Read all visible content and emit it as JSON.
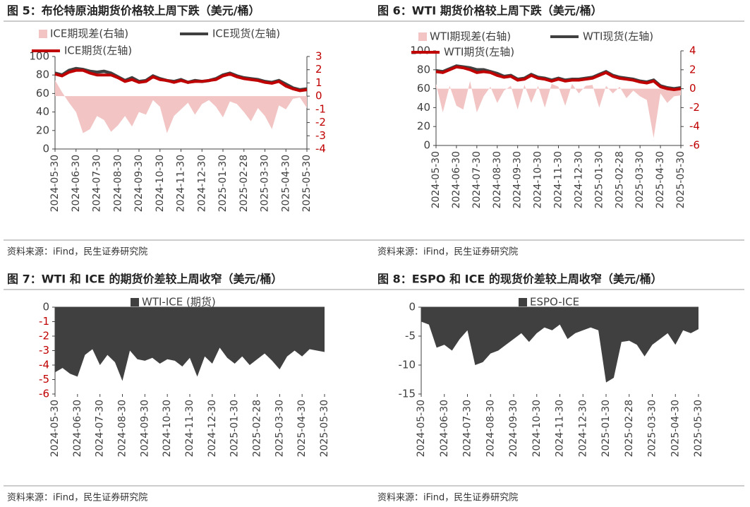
{
  "chart_data": [
    {
      "type": "line",
      "title": "图 5：布伦特原油期货价格较上周下跌（美元/桶）",
      "source": "资料来源：iFind，民生证券研究院",
      "categories": [
        "2024-05-30",
        null,
        null,
        "2024-06-30",
        null,
        null,
        "2024-07-30",
        null,
        null,
        "2024-08-30",
        null,
        null,
        "2024-09-30",
        null,
        null,
        "2024-10-30",
        null,
        null,
        "2024-11-30",
        null,
        null,
        "2024-12-30",
        null,
        null,
        "2025-01-30",
        null,
        null,
        "2025-02-28",
        null,
        null,
        "2025-03-30",
        null,
        null,
        "2025-04-30",
        null,
        null,
        "2025-05-30"
      ],
      "ylim": [
        0,
        100
      ],
      "yticks": [
        0,
        20,
        40,
        60,
        80,
        100
      ],
      "y2lim": [
        -4,
        3
      ],
      "y2ticks": [
        -4,
        -3,
        -2,
        -1,
        0,
        1,
        2,
        3
      ],
      "y2tick_color": "#c00000",
      "series": [
        {
          "name": "ICE期现差(右轴)",
          "type": "area",
          "axis": "y2",
          "color": "#f2c4c4",
          "values": [
            1.2,
            0.3,
            -0.5,
            -1.2,
            -2.8,
            -2.5,
            -1.5,
            -1.8,
            -2.7,
            -2.2,
            -1.5,
            -2.3,
            -1.2,
            -1.4,
            -0.3,
            -0.8,
            -2.8,
            -1.5,
            -1.0,
            -0.5,
            -1.4,
            -0.6,
            -0.3,
            -0.8,
            -1.6,
            -0.4,
            -0.6,
            -1.2,
            -1.9,
            -0.9,
            -1.5,
            -2.5,
            -0.7,
            -1.0,
            -0.2,
            -0.1,
            -0.9
          ]
        },
        {
          "name": "ICE现货(左轴)",
          "type": "line",
          "color": "#404040",
          "values": [
            82,
            80,
            85,
            87,
            86,
            84,
            83,
            84,
            82,
            78,
            74,
            77,
            73,
            74,
            79,
            76,
            74,
            73,
            75,
            72,
            74,
            73,
            74,
            76,
            80,
            82,
            79,
            77,
            76,
            75,
            73,
            72,
            74,
            70,
            66,
            64,
            65
          ]
        },
        {
          "name": "ICE期货(左轴)",
          "type": "line",
          "color": "#c00000",
          "values": [
            81,
            79,
            83,
            85,
            85,
            82,
            80,
            80,
            80,
            77,
            73,
            75,
            72,
            73,
            78,
            75,
            74,
            72,
            74,
            72,
            73,
            73,
            74,
            75,
            79,
            81,
            78,
            76,
            75,
            74,
            72,
            71,
            73,
            68,
            65,
            63,
            64
          ]
        }
      ]
    },
    {
      "type": "line",
      "title": "图 6：WTI 期货价格较上周下跌（美元/桶）",
      "source": "资料来源：iFind，民生证券研究院",
      "categories": [
        "2024-05-30",
        null,
        null,
        "2024-06-30",
        null,
        null,
        "2024-07-30",
        null,
        null,
        "2024-08-30",
        null,
        null,
        "2024-09-30",
        null,
        null,
        "2024-10-30",
        null,
        null,
        "2024-11-30",
        null,
        null,
        "2024-12-30",
        null,
        null,
        "2025-01-30",
        null,
        null,
        "2025-02-28",
        null,
        null,
        "2025-03-30",
        null,
        null,
        "2025-04-30",
        null,
        null,
        "2025-05-30"
      ],
      "ylim": [
        0,
        100
      ],
      "yticks": [
        0,
        20,
        40,
        60,
        80,
        100
      ],
      "y2lim": [
        -6,
        4
      ],
      "y2ticks": [
        -6,
        -4,
        -2,
        0,
        2,
        4
      ],
      "y2tick_color": "#c00000",
      "series": [
        {
          "name": "WTI期现差(右轴)",
          "type": "area",
          "axis": "y2",
          "color": "#f2c4c4",
          "values": [
            0.5,
            -2.5,
            0.3,
            -1.8,
            -2.2,
            0.8,
            -2.5,
            -0.8,
            0.2,
            -1.5,
            -0.2,
            0.3,
            -2.2,
            0.4,
            -1.5,
            0.3,
            -2.0,
            0.5,
            0.2,
            -1.8,
            0.5,
            -0.5,
            0.3,
            0.4,
            -2.0,
            0.3,
            -0.5,
            0.2,
            -1.0,
            -0.2,
            -0.8,
            -1.2,
            -5.2,
            -0.5,
            -1.5,
            -0.8,
            -0.7
          ]
        },
        {
          "name": "WTI现货(左轴)",
          "type": "line",
          "color": "#404040",
          "values": [
            79,
            78,
            81,
            84,
            83,
            82,
            80,
            80,
            78,
            76,
            73,
            74,
            70,
            71,
            75,
            72,
            71,
            69,
            71,
            69,
            70,
            70,
            71,
            72,
            75,
            78,
            74,
            72,
            71,
            70,
            68,
            67,
            69,
            63,
            61,
            60,
            61
          ]
        },
        {
          "name": "WTI期货(左轴)",
          "type": "line",
          "color": "#c00000",
          "values": [
            78,
            77,
            80,
            83,
            82,
            80,
            77,
            78,
            77,
            74,
            72,
            73,
            69,
            70,
            74,
            71,
            70,
            68,
            70,
            68,
            69,
            69,
            70,
            71,
            74,
            77,
            73,
            71,
            70,
            69,
            67,
            66,
            68,
            62,
            60,
            59,
            60
          ]
        }
      ]
    },
    {
      "type": "area",
      "title": "图 7：WTI 和 ICE 的期货价差较上周收窄（美元/桶）",
      "source": "资料来源：iFind，民生证券研究院",
      "categories": [
        "2024-05-30",
        null,
        null,
        "2024-06-30",
        null,
        null,
        "2024-07-30",
        null,
        null,
        "2024-08-30",
        null,
        null,
        "2024-09-30",
        null,
        null,
        "2024-10-30",
        null,
        null,
        "2024-11-30",
        null,
        null,
        "2024-12-30",
        null,
        null,
        "2025-01-30",
        null,
        null,
        "2025-02-28",
        null,
        null,
        "2025-03-30",
        null,
        null,
        "2025-04-30",
        null,
        null,
        "2025-05-30"
      ],
      "ylim": [
        -6,
        0
      ],
      "yticks": [
        0,
        -1,
        -2,
        -3,
        -4,
        -5,
        -6
      ],
      "negative_tick_color": "#c00000",
      "series": [
        {
          "name": "WTI-ICE (期货)",
          "type": "area",
          "color": "#404040",
          "values": [
            -4.5,
            -4.2,
            -4.6,
            -4.8,
            -3.3,
            -2.9,
            -4.0,
            -3.3,
            -3.8,
            -5.1,
            -3.0,
            -3.6,
            -3.7,
            -3.5,
            -3.9,
            -3.6,
            -3.7,
            -4.1,
            -3.5,
            -4.8,
            -3.4,
            -3.9,
            -2.8,
            -3.5,
            -3.9,
            -3.4,
            -4.0,
            -3.6,
            -3.2,
            -3.7,
            -4.3,
            -3.4,
            -3.0,
            -3.4,
            -2.9,
            -3.0,
            -3.1
          ]
        }
      ]
    },
    {
      "type": "area",
      "title": "图 8：ESPO 和 ICE 的现货价差较上周收窄（美元/桶）",
      "source": "资料来源：iFind，民生证券研究院",
      "categories": [
        "2024-05-30",
        null,
        null,
        "2024-06-30",
        null,
        null,
        "2024-07-30",
        null,
        null,
        "2024-08-30",
        null,
        null,
        "2024-09-30",
        null,
        null,
        "2024-10-30",
        null,
        null,
        "2024-11-30",
        null,
        null,
        "2024-12-30",
        null,
        null,
        "2025-01-30",
        null,
        null,
        "2025-02-28",
        null,
        null,
        "2025-03-30",
        null,
        null,
        "2025-04-30",
        null,
        null,
        "2025-05-30"
      ],
      "ylim": [
        -15,
        0
      ],
      "yticks": [
        0,
        -5,
        -10,
        -15
      ],
      "series": [
        {
          "name": "ESPO-ICE",
          "type": "area",
          "color": "#404040",
          "values": [
            -2.5,
            -3.0,
            -7.0,
            -6.5,
            -7.5,
            -5.5,
            -4.0,
            -10.0,
            -9.5,
            -8.0,
            -7.5,
            -6.5,
            -5.5,
            -4.5,
            -6.0,
            -4.5,
            -3.5,
            -4.0,
            -3.0,
            -5.5,
            -4.5,
            -4.0,
            -3.5,
            -4.0,
            -13.0,
            -12.2,
            -6.0,
            -5.8,
            -6.5,
            -8.5,
            -6.5,
            -5.5,
            -4.5,
            -6.5,
            -4.0,
            -4.5,
            -3.8
          ]
        }
      ]
    }
  ]
}
